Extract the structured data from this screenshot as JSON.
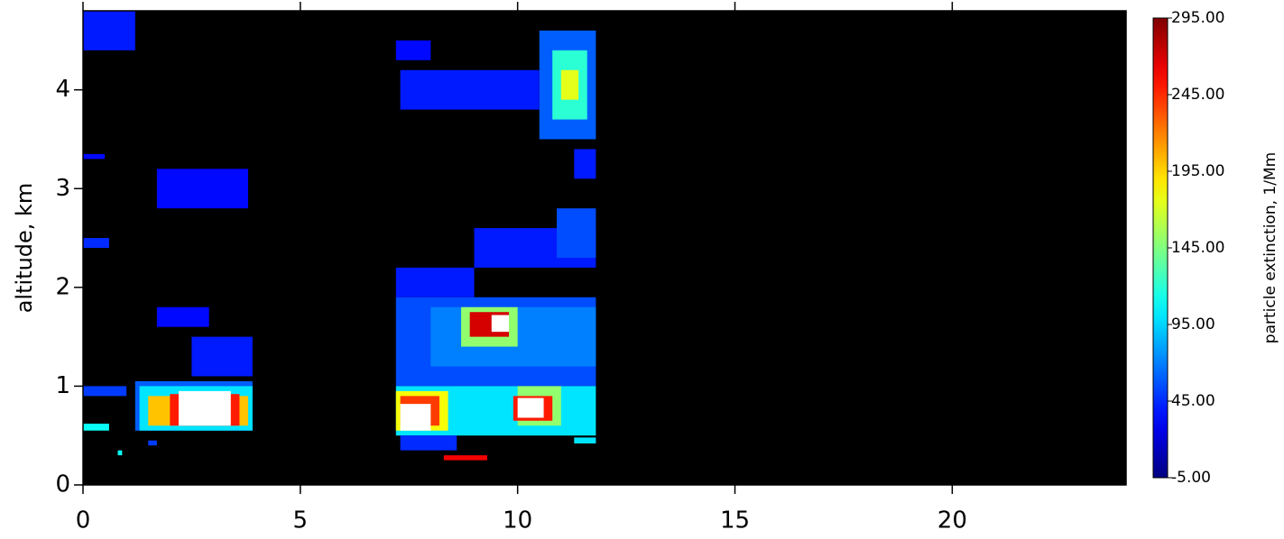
{
  "chart_data": {
    "type": "heatmap",
    "y_label": "altitude, km",
    "colorbar_label": "particle extinction, 1/Mm",
    "colormap": "jet",
    "over_color": "white",
    "background": "black",
    "xlim": [
      0,
      24
    ],
    "xticks": [
      0,
      5,
      10,
      15,
      20
    ],
    "ylim": [
      0,
      4.8
    ],
    "yticks": [
      0,
      1,
      2,
      3,
      4
    ],
    "clim": [
      -5,
      295
    ],
    "cticks": [
      {
        "value": -5,
        "label": "-5.00"
      },
      {
        "value": 45,
        "label": "45.00"
      },
      {
        "value": 95,
        "label": "95.00"
      },
      {
        "value": 145,
        "label": "145.00"
      },
      {
        "value": 195,
        "label": "195.00"
      },
      {
        "value": 245,
        "label": "245.00"
      },
      {
        "value": 295,
        "label": "295.00"
      }
    ],
    "cells": [
      {
        "x": [
          0,
          1.2
        ],
        "y": [
          4.4,
          4.8
        ],
        "value": 40
      },
      {
        "x": [
          1.2,
          3.9
        ],
        "y": [
          0.55,
          1.05
        ],
        "value": 60
      },
      {
        "x": [
          1.3,
          3.9
        ],
        "y": [
          0.55,
          1.0
        ],
        "value": 100
      },
      {
        "x": [
          1.5,
          3.8
        ],
        "y": [
          0.6,
          0.9
        ],
        "value": 200
      },
      {
        "x": [
          2.0,
          3.6
        ],
        "y": [
          0.6,
          0.92
        ],
        "value": 250
      },
      {
        "x": [
          2.2,
          3.4
        ],
        "y": [
          0.6,
          0.95
        ],
        "value": 320
      },
      {
        "x": [
          0,
          0.6
        ],
        "y": [
          0.55,
          0.62
        ],
        "value": 110
      },
      {
        "x": [
          0,
          1.0
        ],
        "y": [
          0.9,
          1.0
        ],
        "value": 50
      },
      {
        "x": [
          2.5,
          3.9
        ],
        "y": [
          1.1,
          1.5
        ],
        "value": 40
      },
      {
        "x": [
          1.7,
          2.9
        ],
        "y": [
          1.6,
          1.8
        ],
        "value": 35
      },
      {
        "x": [
          1.7,
          3.8
        ],
        "y": [
          2.8,
          3.2
        ],
        "value": 35
      },
      {
        "x": [
          0,
          0.6
        ],
        "y": [
          2.4,
          2.5
        ],
        "value": 45
      },
      {
        "x": [
          0,
          0.5
        ],
        "y": [
          3.3,
          3.35
        ],
        "value": 35
      },
      {
        "x": [
          1.5,
          1.7
        ],
        "y": [
          0.4,
          0.45
        ],
        "value": 50
      },
      {
        "x": [
          0.8,
          0.9
        ],
        "y": [
          0.3,
          0.35
        ],
        "value": 110
      },
      {
        "x": [
          7.2,
          11.8
        ],
        "y": [
          1.0,
          1.9
        ],
        "value": 55
      },
      {
        "x": [
          8.0,
          11.8
        ],
        "y": [
          1.2,
          1.8
        ],
        "value": 70
      },
      {
        "x": [
          7.2,
          11.8
        ],
        "y": [
          0.5,
          1.0
        ],
        "value": 100
      },
      {
        "x": [
          7.2,
          8.4
        ],
        "y": [
          0.55,
          0.95
        ],
        "value": 180
      },
      {
        "x": [
          7.3,
          8.2
        ],
        "y": [
          0.6,
          0.9
        ],
        "value": 240
      },
      {
        "x": [
          7.3,
          8.0
        ],
        "y": [
          0.55,
          0.82
        ],
        "value": 320
      },
      {
        "x": [
          10.0,
          11.0
        ],
        "y": [
          0.6,
          1.0
        ],
        "value": 150
      },
      {
        "x": [
          9.9,
          10.8
        ],
        "y": [
          0.65,
          0.9
        ],
        "value": 250
      },
      {
        "x": [
          10.0,
          10.6
        ],
        "y": [
          0.68,
          0.88
        ],
        "value": 320
      },
      {
        "x": [
          8.7,
          10.0
        ],
        "y": [
          1.4,
          1.8
        ],
        "value": 150
      },
      {
        "x": [
          8.9,
          9.8
        ],
        "y": [
          1.5,
          1.75
        ],
        "value": 270
      },
      {
        "x": [
          9.4,
          9.8
        ],
        "y": [
          1.55,
          1.72
        ],
        "value": 320
      },
      {
        "x": [
          7.3,
          8.6
        ],
        "y": [
          0.35,
          0.5
        ],
        "value": 45
      },
      {
        "x": [
          8.3,
          9.3
        ],
        "y": [
          0.25,
          0.3
        ],
        "value": 260
      },
      {
        "x": [
          11.3,
          11.8
        ],
        "y": [
          0.42,
          0.48
        ],
        "value": 100
      },
      {
        "x": [
          9.0,
          11.8
        ],
        "y": [
          2.2,
          2.6
        ],
        "value": 40
      },
      {
        "x": [
          10.9,
          11.8
        ],
        "y": [
          2.3,
          2.8
        ],
        "value": 55
      },
      {
        "x": [
          7.2,
          9.0
        ],
        "y": [
          1.9,
          2.2
        ],
        "value": 40
      },
      {
        "x": [
          10.5,
          11.8
        ],
        "y": [
          3.5,
          4.6
        ],
        "value": 60
      },
      {
        "x": [
          10.8,
          11.6
        ],
        "y": [
          3.7,
          4.4
        ],
        "value": 120
      },
      {
        "x": [
          11.0,
          11.4
        ],
        "y": [
          3.9,
          4.2
        ],
        "value": 175
      },
      {
        "x": [
          7.3,
          10.5
        ],
        "y": [
          3.8,
          4.2
        ],
        "value": 40
      },
      {
        "x": [
          7.2,
          8.0
        ],
        "y": [
          4.3,
          4.5
        ],
        "value": 35
      },
      {
        "x": [
          11.3,
          11.8
        ],
        "y": [
          3.1,
          3.4
        ],
        "value": 40
      }
    ]
  }
}
